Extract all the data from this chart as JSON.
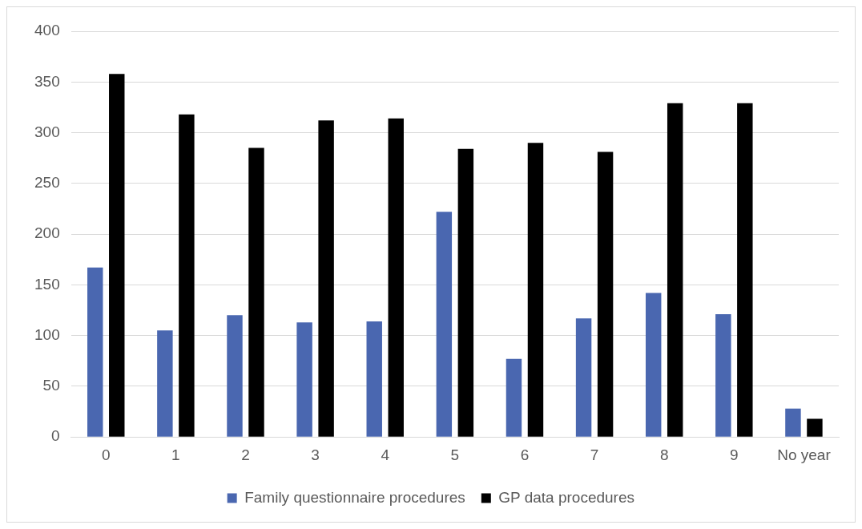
{
  "chart_data": {
    "type": "bar",
    "categories": [
      "0",
      "1",
      "2",
      "3",
      "4",
      "5",
      "6",
      "7",
      "8",
      "9",
      "No year"
    ],
    "series": [
      {
        "name": "Family questionnaire procedures",
        "color": "#4a67b0",
        "values": [
          167,
          105,
          120,
          113,
          114,
          222,
          77,
          117,
          142,
          121,
          28
        ]
      },
      {
        "name": "GP data procedures",
        "color": "#000000",
        "values": [
          358,
          318,
          285,
          312,
          314,
          284,
          290,
          281,
          329,
          329,
          18
        ]
      }
    ],
    "ylim": [
      0,
      400
    ],
    "yticks": [
      0,
      50,
      100,
      150,
      200,
      250,
      300,
      350,
      400
    ],
    "grid": "y",
    "legend": "bottom"
  }
}
